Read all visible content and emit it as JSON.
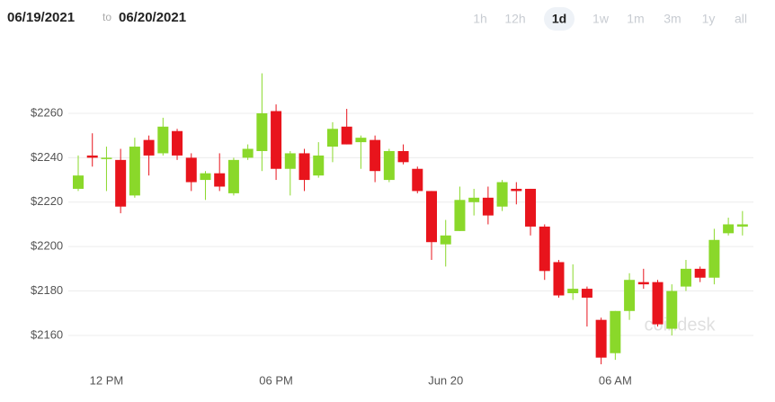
{
  "header": {
    "from": "06/19/2021",
    "to_word": "to",
    "to": "06/20/2021"
  },
  "ranges": {
    "options": [
      "1h",
      "12h",
      "1d",
      "1w",
      "1m",
      "3m",
      "1y",
      "all"
    ],
    "selected": "1d"
  },
  "chart_data": {
    "type": "candlestick",
    "watermark": "coindesk",
    "categories": [
      null,
      null,
      "12 PM",
      null,
      null,
      null,
      null,
      null,
      null,
      null,
      null,
      null,
      null,
      null,
      "06 PM",
      null,
      null,
      null,
      null,
      null,
      null,
      null,
      null,
      null,
      null,
      null,
      "Jun 20",
      null,
      null,
      null,
      null,
      null,
      null,
      null,
      null,
      null,
      null,
      null,
      "06 AM",
      null,
      null,
      null,
      null,
      null,
      null,
      null,
      null,
      null
    ],
    "open": [
      2226,
      2241,
      2240,
      2239,
      2223,
      2248,
      2242,
      2252,
      2240,
      2230,
      2233,
      2224,
      2240,
      2243,
      2261,
      2235,
      2242,
      2232,
      2245,
      2254,
      2247,
      2248,
      2230,
      2243,
      2235,
      2225,
      2201,
      2207,
      2220,
      2222,
      2218,
      2226,
      2226,
      2209,
      2193,
      2179,
      2181,
      2167,
      2152,
      2171,
      2184,
      2184,
      2163,
      2182,
      2190,
      2186,
      2206,
      2209
    ],
    "high": [
      2241,
      2251,
      2245,
      2244,
      2249,
      2250,
      2258,
      2253,
      2242,
      2234,
      2242,
      2240,
      2246,
      2278,
      2264,
      2243,
      2244,
      2247,
      2256,
      2262,
      2250,
      2250,
      2244,
      2246,
      2236,
      2225,
      2212,
      2227,
      2226,
      2227,
      2230,
      2229,
      2226,
      2210,
      2194,
      2192,
      2182,
      2168,
      2171,
      2188,
      2190,
      2185,
      2183,
      2194,
      2191,
      2208,
      2213,
      2216
    ],
    "low": [
      2225,
      2236,
      2225,
      2215,
      2222,
      2232,
      2241,
      2239,
      2225,
      2221,
      2225,
      2223,
      2239,
      2234,
      2230,
      2223,
      2225,
      2231,
      2238,
      2246,
      2235,
      2229,
      2229,
      2237,
      2224,
      2194,
      2191,
      2207,
      2214,
      2210,
      2216,
      2219,
      2205,
      2185,
      2177,
      2176,
      2164,
      2147,
      2149,
      2167,
      2181,
      2164,
      2160,
      2180,
      2184,
      2183,
      2205,
      2205
    ],
    "close": [
      2232,
      2240,
      2240,
      2218,
      2245,
      2241,
      2254,
      2241,
      2229,
      2233,
      2227,
      2239,
      2244,
      2260,
      2235,
      2242,
      2230,
      2241,
      2253,
      2246,
      2249,
      2234,
      2243,
      2238,
      2225,
      2202,
      2205,
      2221,
      2222,
      2214,
      2229,
      2225,
      2209,
      2189,
      2178,
      2181,
      2177,
      2150,
      2171,
      2185,
      2183,
      2165,
      2180,
      2190,
      2186,
      2203,
      2210,
      2210
    ],
    "up_color": "#8ad82a",
    "down_color": "#e8141c",
    "ylim": [
      2145,
      2290
    ],
    "yticks": [
      {
        "value": 2160,
        "label": "$2160"
      },
      {
        "value": 2180,
        "label": "$2180"
      },
      {
        "value": 2200,
        "label": "$2200"
      },
      {
        "value": 2220,
        "label": "$2220"
      },
      {
        "value": 2240,
        "label": "$2240"
      },
      {
        "value": 2260,
        "label": "$2260"
      }
    ],
    "grid": true
  }
}
